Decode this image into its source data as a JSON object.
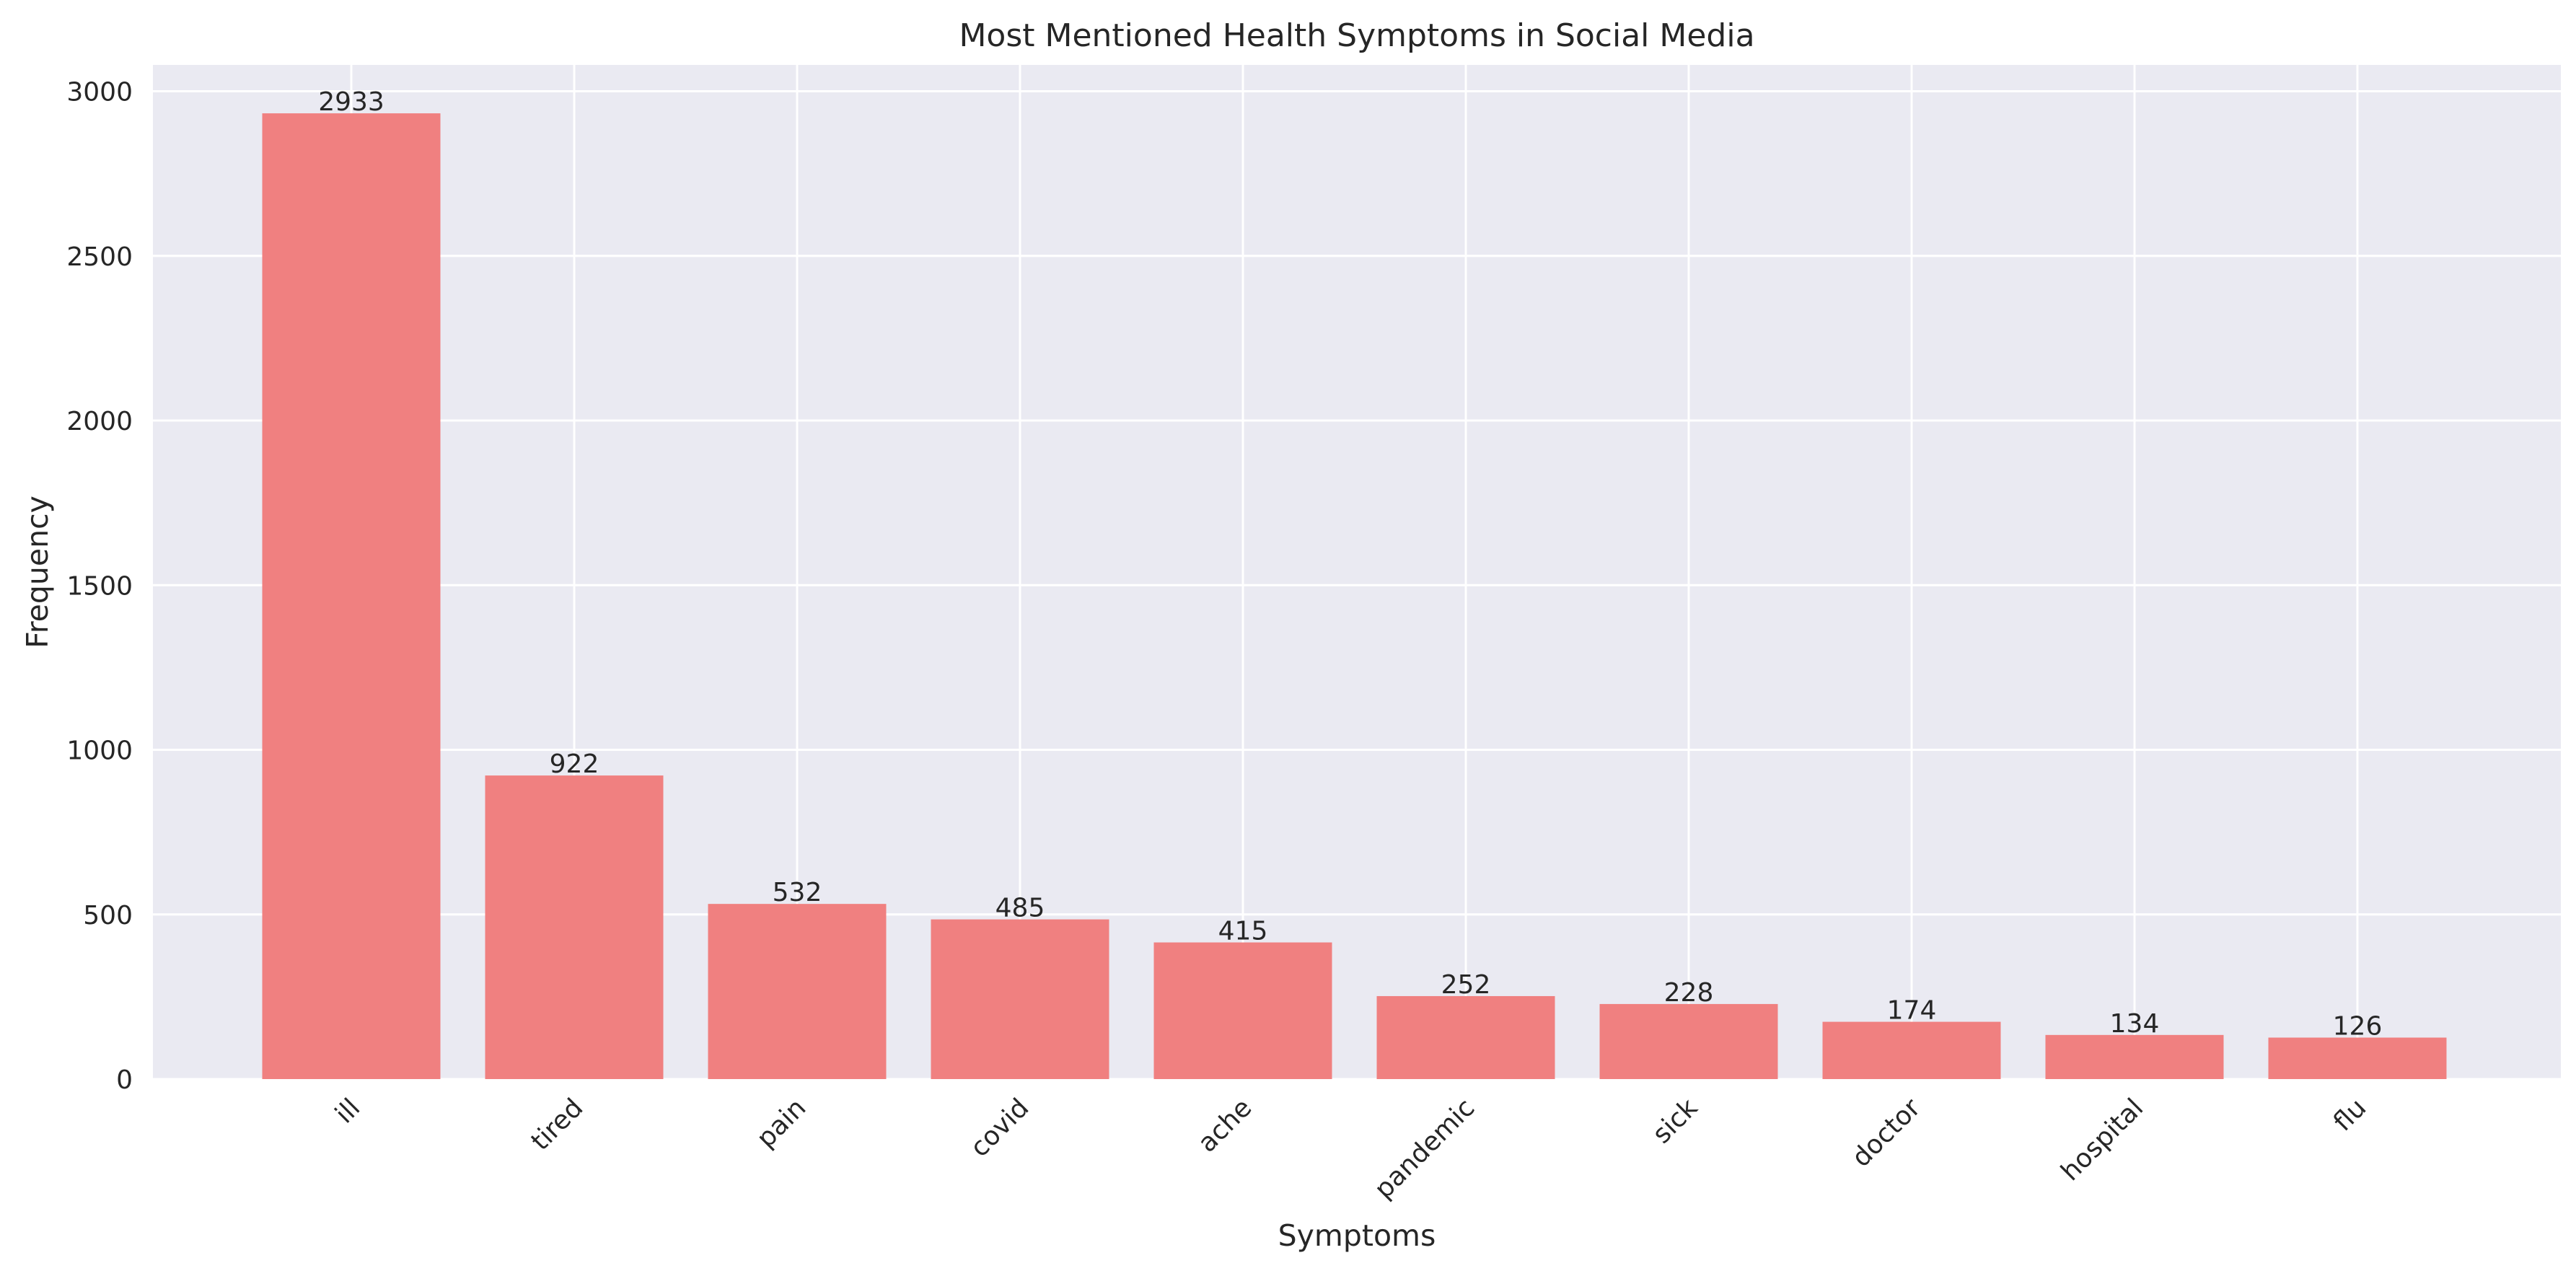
{
  "chart_data": {
    "type": "bar",
    "title": "Most Mentioned Health Symptoms in Social Media",
    "xlabel": "Symptoms",
    "ylabel": "Frequency",
    "categories": [
      "ill",
      "tired",
      "pain",
      "covid",
      "ache",
      "pandemic",
      "sick",
      "doctor",
      "hospital",
      "flu"
    ],
    "values": [
      2933,
      922,
      532,
      485,
      415,
      252,
      228,
      174,
      134,
      126
    ],
    "ylim": [
      0,
      3080
    ],
    "yticks": [
      0,
      500,
      1000,
      1500,
      2000,
      2500,
      3000
    ],
    "grid": true,
    "x_tick_rotation_deg": 45,
    "colors": {
      "bar": "#f08080",
      "plot_background": "#eaeaf2",
      "grid": "#ffffff",
      "text": "#262626"
    }
  }
}
